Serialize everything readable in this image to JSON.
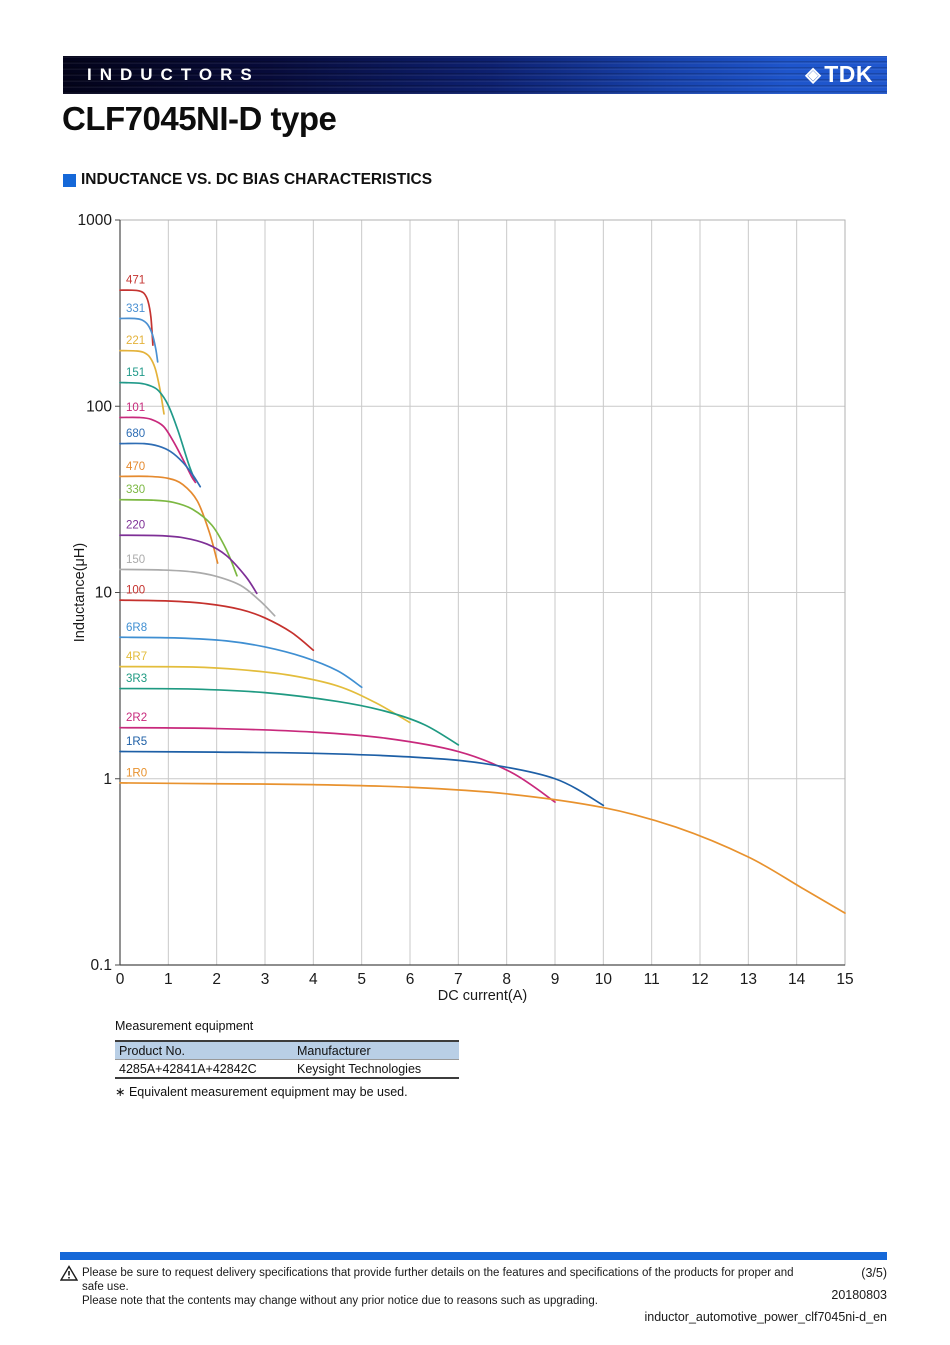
{
  "header": {
    "category": "INDUCTORS",
    "brand": "TDK",
    "logo_mark": "◈",
    "accent_color": "#1568d8"
  },
  "title": "CLF7045NI-D type",
  "section": {
    "title": "INDUCTANCE VS. DC BIAS CHARACTERISTICS",
    "bullet_color": "#1568d8"
  },
  "chart_data": {
    "type": "line",
    "title": "",
    "xlabel": "DC current(A)",
    "ylabel": "Inductance(μH)",
    "x_range": [
      0,
      15
    ],
    "x_ticks": [
      0,
      1,
      2,
      3,
      4,
      5,
      6,
      7,
      8,
      9,
      10,
      11,
      12,
      13,
      14,
      15
    ],
    "y_scale": "log",
    "y_ticks": [
      0.1,
      1,
      10,
      100,
      1000
    ],
    "y_tick_labels": [
      "0.1",
      "1",
      "10",
      "100",
      "1000"
    ],
    "grid": true,
    "legend": "inline-labels",
    "series": [
      {
        "name": "471",
        "color": "#c53431",
        "points": [
          [
            0,
            420
          ],
          [
            0.25,
            420
          ],
          [
            0.4,
            416
          ],
          [
            0.5,
            403
          ],
          [
            0.58,
            366
          ],
          [
            0.64,
            300
          ],
          [
            0.68,
            213
          ]
        ]
      },
      {
        "name": "331",
        "color": "#4a90d2",
        "points": [
          [
            0,
            296
          ],
          [
            0.3,
            296
          ],
          [
            0.45,
            291
          ],
          [
            0.57,
            275
          ],
          [
            0.67,
            243
          ],
          [
            0.74,
            203
          ],
          [
            0.78,
            173
          ]
        ]
      },
      {
        "name": "221",
        "color": "#e4b23a",
        "points": [
          [
            0,
            199
          ],
          [
            0.35,
            198
          ],
          [
            0.5,
            194
          ],
          [
            0.62,
            183
          ],
          [
            0.73,
            159
          ],
          [
            0.83,
            122
          ],
          [
            0.91,
            91
          ]
        ]
      },
      {
        "name": "151",
        "color": "#219a8a",
        "points": [
          [
            0,
            134
          ],
          [
            0.4,
            133
          ],
          [
            0.62,
            129
          ],
          [
            0.8,
            121
          ],
          [
            1.0,
            101
          ],
          [
            1.2,
            74
          ],
          [
            1.42,
            49
          ],
          [
            1.55,
            40
          ]
        ]
      },
      {
        "name": "101",
        "color": "#c8297c",
        "points": [
          [
            0,
            87
          ],
          [
            0.4,
            87
          ],
          [
            0.65,
            85
          ],
          [
            0.9,
            78
          ],
          [
            1.1,
            65
          ],
          [
            1.3,
            52
          ],
          [
            1.48,
            42
          ],
          [
            1.56,
            39
          ]
        ]
      },
      {
        "name": "680",
        "color": "#2e6db4",
        "points": [
          [
            0,
            63
          ],
          [
            0.5,
            63
          ],
          [
            0.8,
            61
          ],
          [
            1.05,
            57
          ],
          [
            1.3,
            50
          ],
          [
            1.5,
            43
          ],
          [
            1.66,
            37
          ]
        ]
      },
      {
        "name": "470",
        "color": "#e58a2f",
        "points": [
          [
            0,
            42
          ],
          [
            0.6,
            42
          ],
          [
            1.0,
            41
          ],
          [
            1.3,
            38
          ],
          [
            1.6,
            31
          ],
          [
            1.85,
            21
          ],
          [
            2.02,
            14.4
          ]
        ]
      },
      {
        "name": "330",
        "color": "#7cb842",
        "points": [
          [
            0,
            31.5
          ],
          [
            0.7,
            31.3
          ],
          [
            1.1,
            30.5
          ],
          [
            1.5,
            28
          ],
          [
            1.9,
            23
          ],
          [
            2.2,
            17
          ],
          [
            2.42,
            12.3
          ]
        ]
      },
      {
        "name": "220",
        "color": "#7e2f96",
        "points": [
          [
            0,
            20.3
          ],
          [
            0.8,
            20.2
          ],
          [
            1.3,
            19.7
          ],
          [
            1.8,
            18.2
          ],
          [
            2.2,
            15.8
          ],
          [
            2.6,
            12.2
          ],
          [
            2.83,
            9.9
          ]
        ]
      },
      {
        "name": "150",
        "color": "#ababab",
        "points": [
          [
            0,
            13.3
          ],
          [
            0.9,
            13.2
          ],
          [
            1.5,
            12.9
          ],
          [
            2.0,
            12.2
          ],
          [
            2.5,
            10.9
          ],
          [
            2.9,
            9.0
          ],
          [
            3.2,
            7.5
          ]
        ]
      },
      {
        "name": "100",
        "color": "#c5312d",
        "points": [
          [
            0,
            9.1
          ],
          [
            1.0,
            9.0
          ],
          [
            1.8,
            8.7
          ],
          [
            2.5,
            8.1
          ],
          [
            3.0,
            7.3
          ],
          [
            3.55,
            6.1
          ],
          [
            4.0,
            4.9
          ]
        ]
      },
      {
        "name": "6R8",
        "color": "#3f8fd2",
        "points": [
          [
            0,
            5.75
          ],
          [
            1.2,
            5.7
          ],
          [
            2.2,
            5.5
          ],
          [
            3.0,
            5.1
          ],
          [
            3.8,
            4.5
          ],
          [
            4.5,
            3.8
          ],
          [
            5.0,
            3.1
          ]
        ]
      },
      {
        "name": "4R7",
        "color": "#e3bd3c",
        "points": [
          [
            0,
            4.0
          ],
          [
            1.5,
            3.98
          ],
          [
            2.5,
            3.85
          ],
          [
            3.5,
            3.6
          ],
          [
            4.5,
            3.15
          ],
          [
            5.3,
            2.55
          ],
          [
            6.0,
            2.0
          ]
        ]
      },
      {
        "name": "3R3",
        "color": "#1f9a82",
        "points": [
          [
            0,
            3.05
          ],
          [
            1.5,
            3.03
          ],
          [
            3.0,
            2.9
          ],
          [
            4.5,
            2.6
          ],
          [
            5.5,
            2.3
          ],
          [
            6.3,
            1.95
          ],
          [
            7.0,
            1.52
          ]
        ]
      },
      {
        "name": "2R2",
        "color": "#c8297c",
        "points": [
          [
            0,
            1.88
          ],
          [
            2.0,
            1.86
          ],
          [
            4.0,
            1.78
          ],
          [
            5.5,
            1.65
          ],
          [
            7.0,
            1.4
          ],
          [
            8.1,
            1.08
          ],
          [
            9.0,
            0.75
          ]
        ]
      },
      {
        "name": "1R5",
        "color": "#1d5fa6",
        "points": [
          [
            0,
            1.4
          ],
          [
            2.0,
            1.39
          ],
          [
            4.0,
            1.37
          ],
          [
            6.0,
            1.31
          ],
          [
            7.5,
            1.21
          ],
          [
            9.0,
            1.0
          ],
          [
            10.0,
            0.72
          ]
        ]
      },
      {
        "name": "1R0",
        "color": "#e8922e",
        "points": [
          [
            0,
            0.95
          ],
          [
            2.0,
            0.94
          ],
          [
            4.0,
            0.93
          ],
          [
            6.0,
            0.9
          ],
          [
            8.0,
            0.83
          ],
          [
            10.0,
            0.7
          ],
          [
            11.5,
            0.55
          ],
          [
            13.0,
            0.38
          ],
          [
            14.1,
            0.26
          ],
          [
            15.0,
            0.19
          ]
        ]
      }
    ]
  },
  "measurement": {
    "caption": "Measurement equipment",
    "table": {
      "headers": [
        "Product No.",
        "Manufacturer"
      ],
      "rows": [
        [
          "4285A+42841A+42842C",
          "Keysight Technologies"
        ]
      ]
    },
    "note": "∗ Equivalent measurement equipment may be used."
  },
  "footer": {
    "warning_line1": "Please be sure to request delivery specifications that provide further details on the features and specifications of the products for proper and safe use.",
    "warning_line2": "Please note that the contents may change without any prior notice due to reasons such as upgrading.",
    "page": "(3/5)",
    "date": "20180803",
    "doc_id": "inductor_automotive_power_clf7045ni-d_en"
  }
}
